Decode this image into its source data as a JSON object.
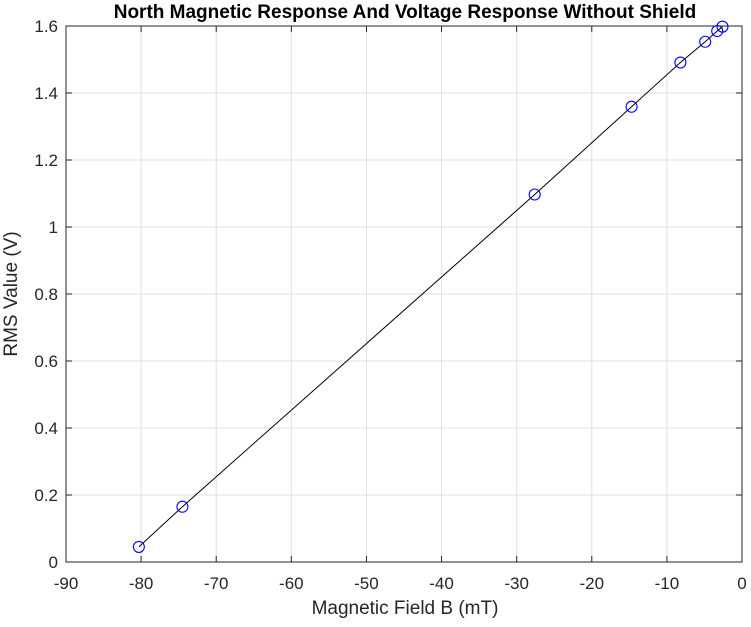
{
  "chart_data": {
    "type": "line",
    "title": "North Magnetic Response And Voltage Response Without Shield",
    "xlabel": "Magnetic Field B (mT)",
    "ylabel": "RMS Value (V)",
    "xlim": [
      -90,
      0
    ],
    "ylim": [
      0,
      1.6
    ],
    "xticks": [
      "-90",
      "-80",
      "-70",
      "-60",
      "-50",
      "-40",
      "-30",
      "-20",
      "-10",
      "0"
    ],
    "yticks": [
      "0",
      "0.2",
      "0.4",
      "0.6",
      "0.8",
      "1",
      "1.2",
      "1.4",
      "1.6"
    ],
    "grid": true,
    "markers": "open circle",
    "series": [
      {
        "x": [
          -80.3,
          -74.5,
          -27.6,
          -14.7,
          -8.2,
          -4.9,
          -3.3,
          -2.6
        ],
        "y": [
          0.045,
          0.165,
          1.097,
          1.359,
          1.491,
          1.553,
          1.585,
          1.598
        ]
      }
    ],
    "colors": {
      "line": "#000000",
      "marker": "#0000ff",
      "grid": "#e0e0e0",
      "axis": "#262626"
    }
  }
}
